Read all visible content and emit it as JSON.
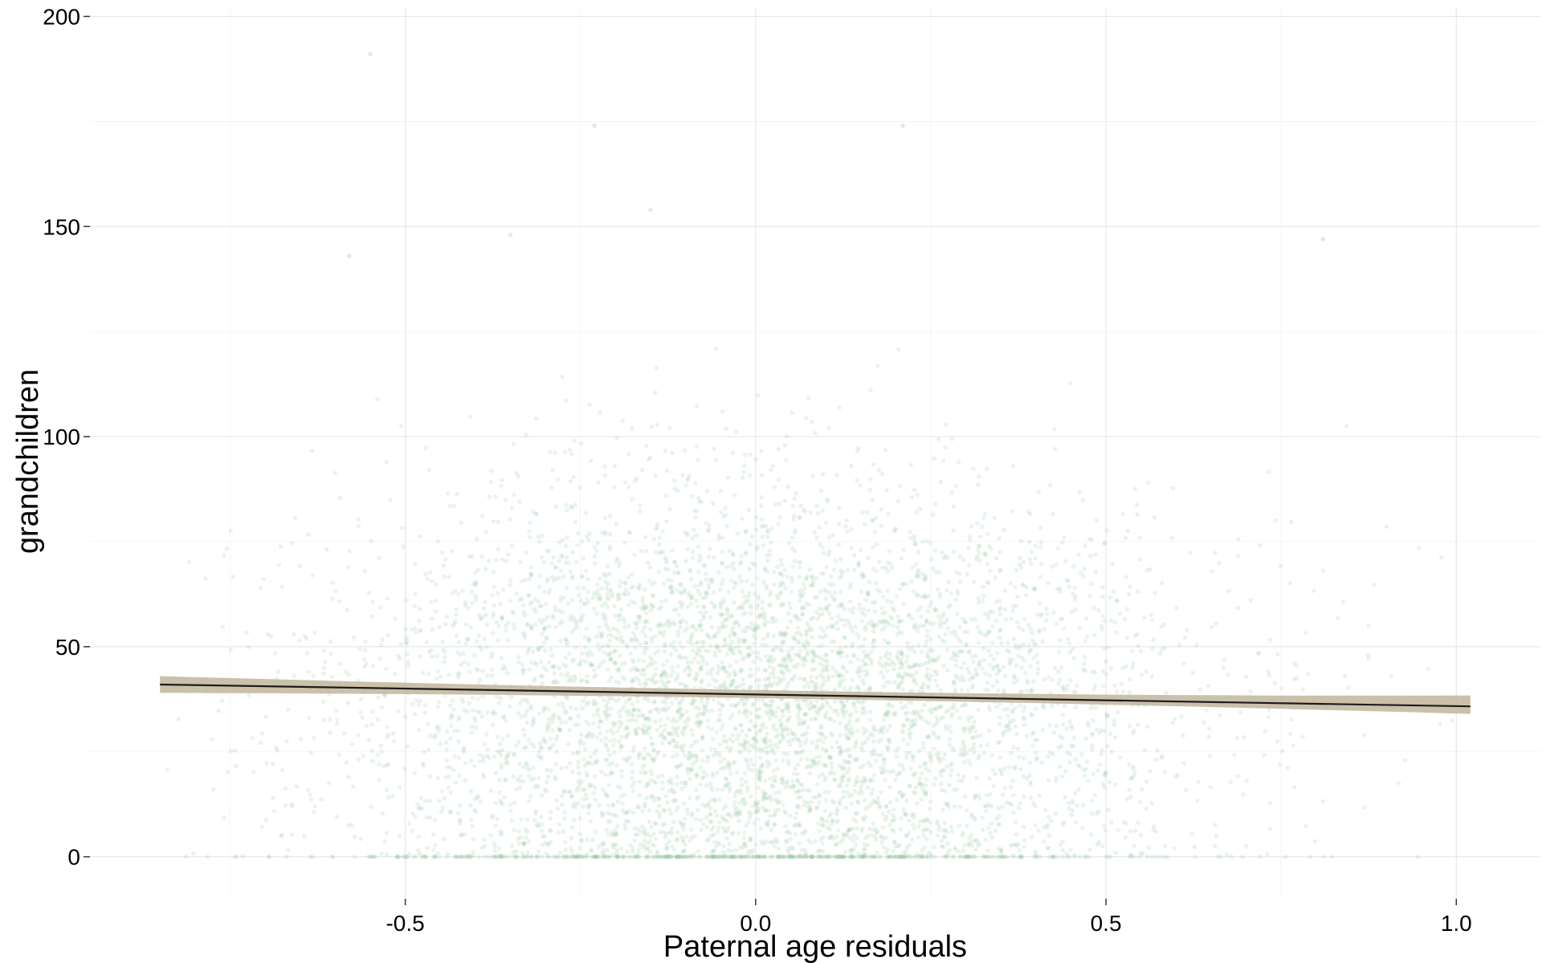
{
  "chart_data": {
    "type": "scatter",
    "xlabel": "Paternal age residuals",
    "ylabel": "grandchildren",
    "xlim": [
      -0.95,
      1.12
    ],
    "ylim": [
      -10,
      202
    ],
    "x_ticks": [
      -0.5,
      0.0,
      0.5,
      1.0
    ],
    "x_tick_labels": [
      "-0.5",
      "0.0",
      "0.5",
      "1.0"
    ],
    "y_ticks": [
      0,
      50,
      100,
      150,
      200
    ],
    "y_tick_labels": [
      "0",
      "50",
      "100",
      "150",
      "200"
    ],
    "grid": true,
    "legend": "none",
    "colors": {
      "points": "#8cc29a",
      "line": "#1c1c1c",
      "ribbon": "#c2b59b",
      "grid": "#e8e8e8",
      "tick": "#333333"
    },
    "series": [
      {
        "kind": "points",
        "point_count_approx": 6000,
        "x_center": 0.0,
        "x_spread_sd": 0.3,
        "y_mean": 38,
        "y_spread_sd": 25,
        "y_zero_cluster_fraction": 0.08,
        "notable_outliers": [
          {
            "x": -0.55,
            "y": 191
          },
          {
            "x": -0.23,
            "y": 174
          },
          {
            "x": 0.21,
            "y": 174
          },
          {
            "x": -0.15,
            "y": 154
          },
          {
            "x": -0.35,
            "y": 148
          },
          {
            "x": 0.81,
            "y": 147
          },
          {
            "x": -0.58,
            "y": 143
          }
        ]
      },
      {
        "kind": "regression_line",
        "x": [
          -0.85,
          1.02
        ],
        "y": [
          41.0,
          35.8
        ],
        "ci_lower": [
          39.0,
          34.0
        ],
        "ci_upper": [
          43.0,
          38.4
        ]
      }
    ]
  }
}
